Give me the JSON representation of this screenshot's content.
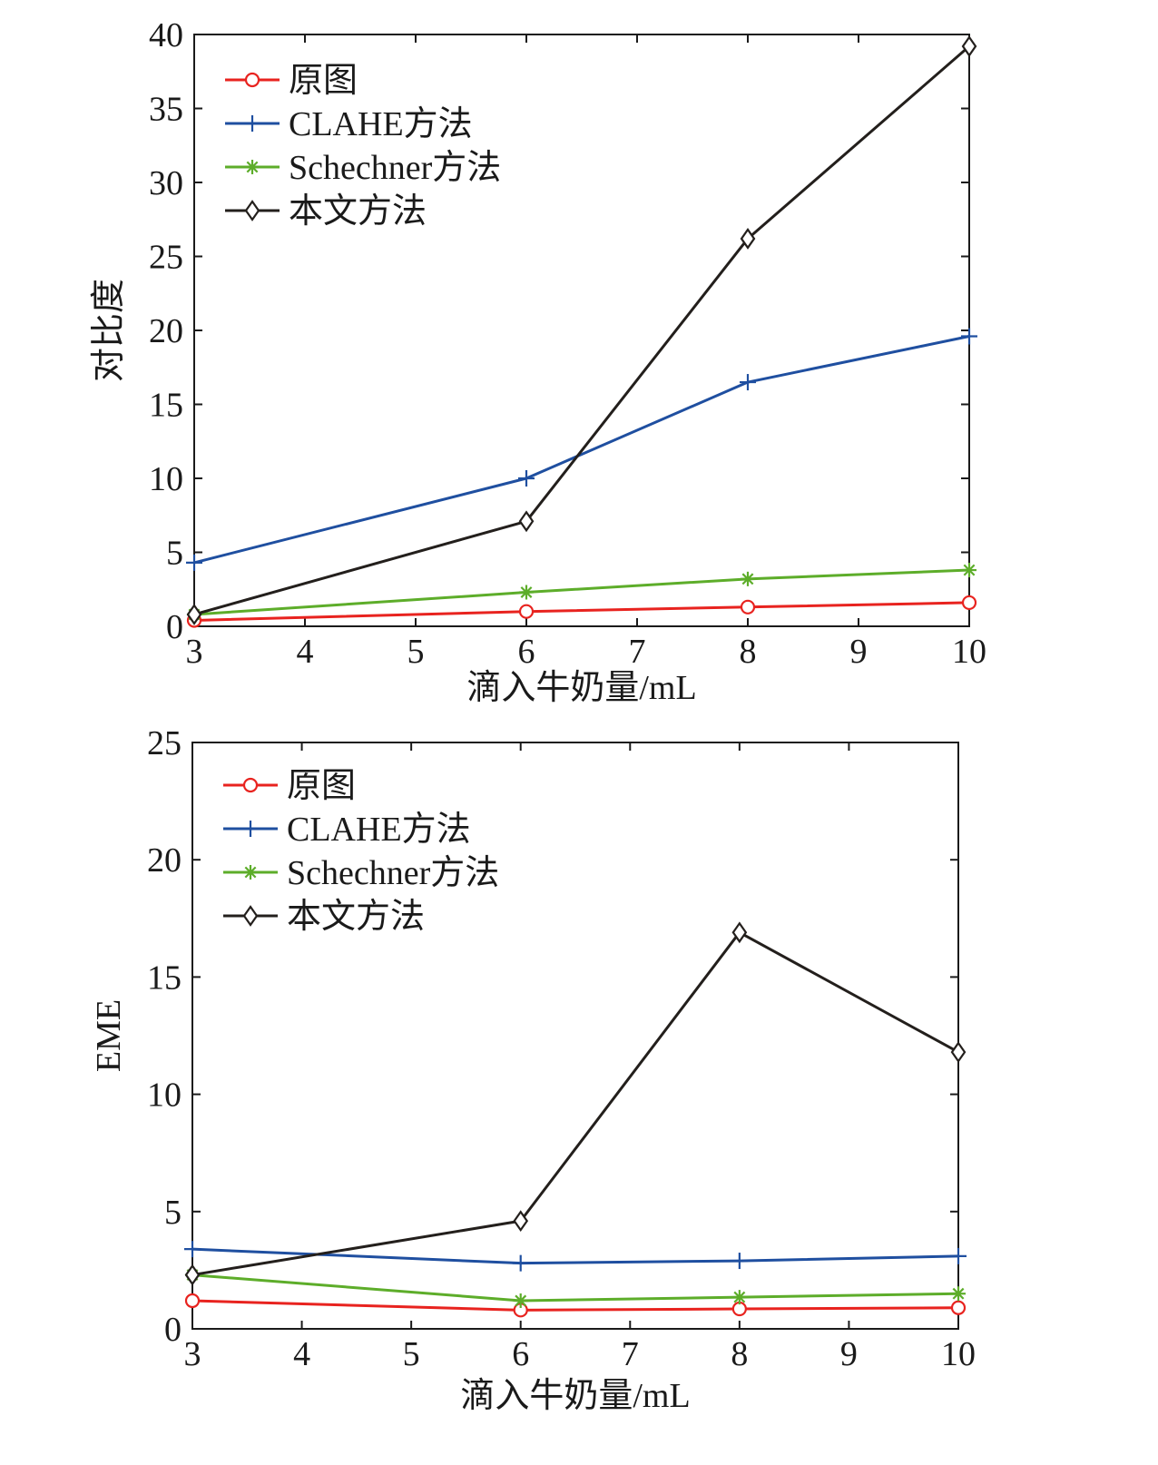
{
  "chart_data": [
    {
      "type": "line",
      "title": "",
      "xlabel": "滴入牛奶量/mL",
      "ylabel": "对比度",
      "xlim": [
        3,
        10
      ],
      "ylim": [
        0,
        40
      ],
      "xticks": [
        "3",
        "4",
        "5",
        "6",
        "7",
        "8",
        "9",
        "10"
      ],
      "yticks": [
        "0",
        "5",
        "10",
        "15",
        "20",
        "25",
        "30",
        "35",
        "40"
      ],
      "x": [
        3,
        6,
        8,
        10
      ],
      "legend_position": "top-left",
      "grid": false,
      "series": [
        {
          "name": "原图",
          "color": "#e8231f",
          "marker": "circle",
          "values": [
            0.4,
            1.0,
            1.3,
            1.6
          ]
        },
        {
          "name": "CLAHE方法",
          "color": "#1f4fa0",
          "marker": "plus",
          "values": [
            4.3,
            10.0,
            16.5,
            19.6
          ]
        },
        {
          "name": "Schechner方法",
          "color": "#5dad2a",
          "marker": "asterisk",
          "values": [
            0.8,
            2.3,
            3.2,
            3.8
          ]
        },
        {
          "name": "本文方法",
          "color": "#231f1c",
          "marker": "diamond",
          "values": [
            0.8,
            7.1,
            26.2,
            39.2
          ]
        }
      ]
    },
    {
      "type": "line",
      "title": "",
      "xlabel": "滴入牛奶量/mL",
      "ylabel": "EME",
      "xlim": [
        3,
        10
      ],
      "ylim": [
        0,
        25
      ],
      "xticks": [
        "3",
        "4",
        "5",
        "6",
        "7",
        "8",
        "9",
        "10"
      ],
      "yticks": [
        "0",
        "5",
        "10",
        "15",
        "20",
        "25"
      ],
      "x": [
        3,
        6,
        8,
        10
      ],
      "legend_position": "top-left",
      "grid": false,
      "series": [
        {
          "name": "原图",
          "color": "#e8231f",
          "marker": "circle",
          "values": [
            1.2,
            0.8,
            0.85,
            0.9
          ]
        },
        {
          "name": "CLAHE方法",
          "color": "#1f4fa0",
          "marker": "plus",
          "values": [
            3.4,
            2.8,
            2.9,
            3.1
          ]
        },
        {
          "name": "Schechner方法",
          "color": "#5dad2a",
          "marker": "asterisk",
          "values": [
            2.3,
            1.2,
            1.35,
            1.5
          ]
        },
        {
          "name": "本文方法",
          "color": "#231f1c",
          "marker": "diamond",
          "values": [
            2.3,
            4.6,
            16.9,
            11.8
          ]
        }
      ]
    }
  ]
}
